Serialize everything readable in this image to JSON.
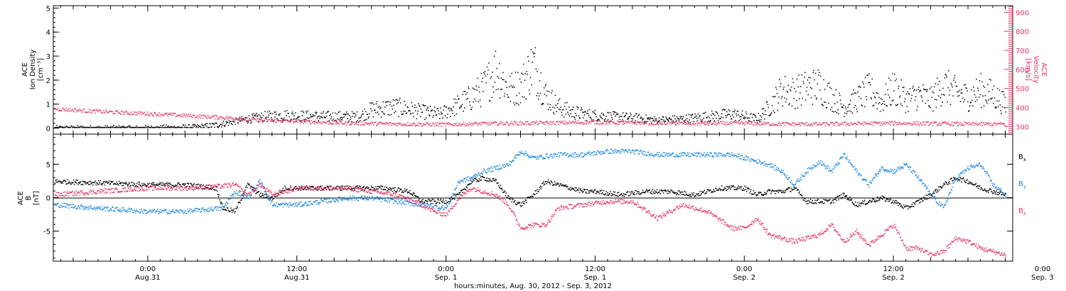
{
  "chart_data": {
    "type": "scatter",
    "xaxis": {
      "label": "hours:minutes, Aug. 30, 2012 - Sep.  3, 2012",
      "range_hours": [
        -7.6,
        69.6
      ],
      "ticks": [
        {
          "hour": 0,
          "time": "0:00",
          "date": "Aug.31"
        },
        {
          "hour": 12,
          "time": "12:00",
          "date": "Aug.31"
        },
        {
          "hour": 24,
          "time": "0:00",
          "date": "Sep. 1"
        },
        {
          "hour": 36,
          "time": "12:00",
          "date": "Sep. 1"
        },
        {
          "hour": 48,
          "time": "0:00",
          "date": "Sep. 2"
        },
        {
          "hour": 60,
          "time": "12:00",
          "date": "Sep. 2"
        },
        {
          "hour": 72,
          "time": "0:00",
          "date": "Sep. 3"
        }
      ]
    },
    "panels": [
      {
        "name": "plasma",
        "y_left": {
          "label_lines": [
            "ACE",
            "Ion Density",
            "[cm⁻³]"
          ],
          "range": [
            -0.25,
            5.1
          ],
          "ticks": [
            0,
            1,
            2,
            3,
            4,
            5
          ]
        },
        "y_right": {
          "label_lines": [
            "ACE",
            "Velocity",
            "[km/s]"
          ],
          "range": [
            260,
            935
          ],
          "ticks": [
            300,
            400,
            500,
            600,
            700,
            800,
            900
          ]
        },
        "series": [
          {
            "axis": "left",
            "color": "#000000",
            "hours": [
              -7.5,
              -4,
              0,
              4,
              5.5,
              7,
              8,
              9.5,
              11,
              14,
              17,
              18,
              20,
              22,
              23.5,
              25,
              26,
              27,
              28,
              29,
              30,
              31,
              32,
              33,
              34,
              35,
              37,
              39,
              41,
              43,
              45,
              47,
              49,
              50,
              51,
              52,
              53,
              54,
              55,
              56,
              57,
              58,
              59,
              60,
              61,
              62,
              63,
              64,
              65,
              66,
              67,
              68,
              69
            ],
            "values": [
              0.0,
              0.0,
              0.0,
              0.05,
              0.15,
              0.3,
              0.4,
              0.5,
              0.55,
              0.5,
              0.5,
              0.8,
              0.9,
              0.7,
              0.6,
              1.0,
              1.3,
              1.7,
              2.5,
              1.6,
              1.8,
              2.7,
              1.4,
              0.9,
              0.7,
              0.6,
              0.5,
              0.45,
              0.35,
              0.4,
              0.5,
              0.6,
              0.4,
              0.9,
              1.6,
              1.5,
              1.7,
              1.8,
              1.3,
              0.9,
              1.2,
              1.6,
              1.1,
              1.7,
              1.2,
              1.4,
              1.2,
              1.8,
              1.5,
              1.3,
              1.6,
              1.4,
              1.0
            ]
          },
          {
            "axis": "right",
            "color": "#e8325f",
            "hours": [
              -7.5,
              -5,
              -2,
              0,
              3,
              6,
              9,
              12,
              15,
              18,
              21,
              24,
              27,
              30,
              33,
              36,
              39,
              42,
              45,
              48,
              51,
              54,
              57,
              60,
              63,
              66,
              69
            ],
            "values": [
              395,
              385,
              375,
              370,
              360,
              350,
              335,
              330,
              322,
              318,
              315,
              313,
              318,
              320,
              322,
              325,
              322,
              320,
              318,
              320,
              315,
              315,
              318,
              320,
              318,
              315,
              315
            ]
          }
        ]
      },
      {
        "name": "magnetic-field",
        "y_left": {
          "label_lines": [
            "ACE",
            "B",
            "[nT]"
          ],
          "range": [
            -9.5,
            9.5
          ],
          "ticks": [
            -5,
            0,
            5
          ]
        },
        "legend": [
          {
            "label": "B",
            "sub": "x",
            "color": "#000000"
          },
          {
            "label": "B",
            "sub": "y",
            "color": "#1a86e0"
          },
          {
            "label": "B",
            "sub": "z",
            "color": "#e8325f"
          }
        ],
        "series": [
          {
            "name": "Bx",
            "color": "#000000",
            "hours": [
              -7.5,
              -4,
              0,
              3,
              5.5,
              6,
              7,
              8,
              9,
              10,
              11,
              13,
              15,
              17,
              19,
              21,
              22,
              23,
              24,
              25,
              26,
              27,
              28,
              29,
              30,
              31,
              32,
              33,
              34,
              35,
              36,
              38,
              40,
              42,
              44,
              46,
              48,
              49,
              50,
              51,
              52,
              53,
              54,
              55,
              56,
              57,
              58,
              59,
              60,
              61,
              62,
              63,
              64,
              65,
              66,
              67,
              68,
              69
            ],
            "values": [
              2.5,
              2.3,
              2.0,
              2.0,
              1.5,
              -1.5,
              -2.0,
              2.0,
              0.5,
              0.0,
              1.5,
              1.5,
              1.5,
              1.5,
              1.5,
              1.0,
              -0.5,
              -0.5,
              -0.5,
              0.5,
              2.5,
              3.0,
              2.5,
              0.0,
              -1.0,
              0.5,
              2.5,
              2.0,
              1.5,
              1.0,
              1.0,
              0.5,
              1.0,
              1.0,
              0.5,
              1.5,
              1.5,
              0.5,
              1.0,
              1.0,
              1.5,
              -0.5,
              -0.5,
              -0.5,
              0.5,
              -1.0,
              -0.5,
              0.0,
              -0.5,
              -1.5,
              -0.5,
              0.5,
              2.0,
              3.0,
              2.5,
              1.5,
              1.0,
              0.5
            ]
          },
          {
            "name": "By",
            "color": "#1a86e0",
            "hours": [
              -7.5,
              -4,
              0,
              3,
              6,
              7,
              8,
              9,
              10,
              12,
              14,
              16,
              18,
              20,
              22,
              24,
              25,
              26,
              27,
              28,
              29,
              30,
              31,
              33,
              35,
              37,
              39,
              41,
              43,
              45,
              47,
              49,
              50,
              51,
              52,
              53,
              54,
              55,
              56,
              57,
              58,
              59,
              60,
              61,
              62,
              63,
              64,
              65,
              66,
              67,
              68,
              69
            ],
            "values": [
              -1.0,
              -1.5,
              -2.0,
              -2.0,
              -1.5,
              1.0,
              0.0,
              2.5,
              -1.0,
              -1.0,
              -0.5,
              0.0,
              0.0,
              -0.5,
              -1.0,
              -1.5,
              2.5,
              3.0,
              4.0,
              4.5,
              5.0,
              7.0,
              6.0,
              6.5,
              6.5,
              7.0,
              7.0,
              6.5,
              6.5,
              6.5,
              6.5,
              5.5,
              5.0,
              4.0,
              2.0,
              4.0,
              5.5,
              4.0,
              6.5,
              4.0,
              2.0,
              4.5,
              4.0,
              5.0,
              3.0,
              0.5,
              -1.5,
              3.0,
              4.5,
              5.0,
              2.0,
              0.5
            ]
          },
          {
            "name": "Bz",
            "color": "#e8325f",
            "hours": [
              -7.5,
              -4,
              0,
              3,
              6,
              7,
              8,
              9,
              10,
              12,
              14,
              16,
              18,
              20,
              22,
              23,
              24,
              25,
              26,
              27,
              28,
              29,
              30,
              31,
              32,
              33,
              35,
              37,
              39,
              41,
              43,
              45,
              47,
              48,
              49,
              50,
              51,
              52,
              53,
              54,
              55,
              56,
              57,
              58,
              59,
              60,
              61,
              62,
              63,
              64,
              65,
              66,
              67,
              68,
              69
            ],
            "values": [
              0.5,
              1.0,
              1.5,
              1.5,
              1.8,
              2.0,
              0.5,
              2.0,
              0.5,
              1.5,
              1.5,
              1.5,
              1.0,
              0.5,
              -1.0,
              -2.0,
              -2.5,
              0.0,
              1.5,
              1.0,
              0.5,
              -1.0,
              -4.5,
              -4.0,
              -4.0,
              -1.5,
              -1.0,
              -0.5,
              -0.5,
              -3.0,
              -1.0,
              -2.0,
              -4.5,
              -4.5,
              -3.0,
              -5.5,
              -6.0,
              -6.5,
              -6.0,
              -5.5,
              -4.0,
              -6.5,
              -5.0,
              -7.0,
              -5.5,
              -4.0,
              -7.5,
              -7.5,
              -8.5,
              -8.0,
              -6.0,
              -6.5,
              -7.5,
              -8.0,
              -8.5
            ]
          }
        ]
      }
    ]
  }
}
